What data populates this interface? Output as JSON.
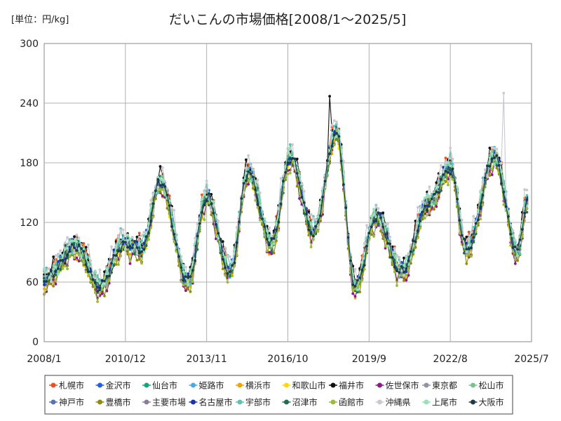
{
  "chart_data": {
    "type": "line",
    "title": "だいこんの市場価格[2008/1～2025/5]",
    "unit_label": "[単位：円/kg]",
    "ylim": [
      0,
      300
    ],
    "yticks": [
      "0",
      "60",
      "120",
      "180",
      "240",
      "300"
    ],
    "ytick_values": [
      0,
      60,
      120,
      180,
      240,
      300
    ],
    "xlim": [
      0,
      210
    ],
    "xticks": [
      "2008/1",
      "2010/12",
      "2013/11",
      "2016/10",
      "2019/9",
      "2022/8",
      "2025/7"
    ],
    "xtick_values": [
      0,
      35,
      70,
      105,
      140,
      175,
      210
    ],
    "grid": true,
    "legend_position": "bottom",
    "reference_index": [
      0,
      14,
      24,
      34,
      42,
      50,
      62,
      70,
      80,
      88,
      98,
      106,
      116,
      126,
      134,
      143,
      154,
      166,
      175,
      182,
      194,
      204,
      208
    ],
    "reference_values": [
      62,
      95,
      55,
      98,
      92,
      160,
      60,
      145,
      70,
      170,
      98,
      185,
      110,
      210,
      55,
      125,
      70,
      140,
      175,
      92,
      185,
      90,
      140
    ],
    "series": [
      {
        "name": "札幌市",
        "color": "#e8531f",
        "offset": 5,
        "noise": 10
      },
      {
        "name": "金沢市",
        "color": "#1f5fe0",
        "offset": 2,
        "noise": 7
      },
      {
        "name": "仙台市",
        "color": "#11a679",
        "offset": 0,
        "noise": 6
      },
      {
        "name": "姫路市",
        "color": "#4aa8e8",
        "offset": 1,
        "noise": 6
      },
      {
        "name": "横浜市",
        "color": "#f0a500",
        "offset": -3,
        "noise": 8
      },
      {
        "name": "和歌山市",
        "color": "#ffd900",
        "offset": -2,
        "noise": 7
      },
      {
        "name": "福井市",
        "color": "#111111",
        "offset": 6,
        "noise": 9
      },
      {
        "name": "佐世保市",
        "color": "#8a1a8a",
        "offset": -6,
        "noise": 9
      },
      {
        "name": "東京都",
        "color": "#8c96a4",
        "offset": 1,
        "noise": 5
      },
      {
        "name": "松山市",
        "color": "#76c48d",
        "offset": 3,
        "noise": 7
      },
      {
        "name": "神戸市",
        "color": "#4f77b6",
        "offset": 0,
        "noise": 6
      },
      {
        "name": "豊橋市",
        "color": "#8f8b10",
        "offset": -4,
        "noise": 8
      },
      {
        "name": "主要市場",
        "color": "#8a7e98",
        "offset": 0,
        "noise": 3
      },
      {
        "name": "名古屋市",
        "color": "#1434b4",
        "offset": 2,
        "noise": 6
      },
      {
        "name": "宇部市",
        "color": "#5cc3b0",
        "offset": 4,
        "noise": 10
      },
      {
        "name": "沼津市",
        "color": "#1d6e4f",
        "offset": -1,
        "noise": 7
      },
      {
        "name": "函館市",
        "color": "#9cba3c",
        "offset": -5,
        "noise": 11
      },
      {
        "name": "沖縄県",
        "color": "#c8cad0",
        "offset": 8,
        "noise": 12
      },
      {
        "name": "上尾市",
        "color": "#94e2b8",
        "offset": 3,
        "noise": 8
      },
      {
        "name": "大阪市",
        "color": "#1c3a4a",
        "offset": 0,
        "noise": 6
      }
    ],
    "annotations": {
      "fukui_peak": {
        "x": 123,
        "y": 247
      },
      "okinawa_peak": {
        "x": 198,
        "y": 250
      }
    }
  }
}
